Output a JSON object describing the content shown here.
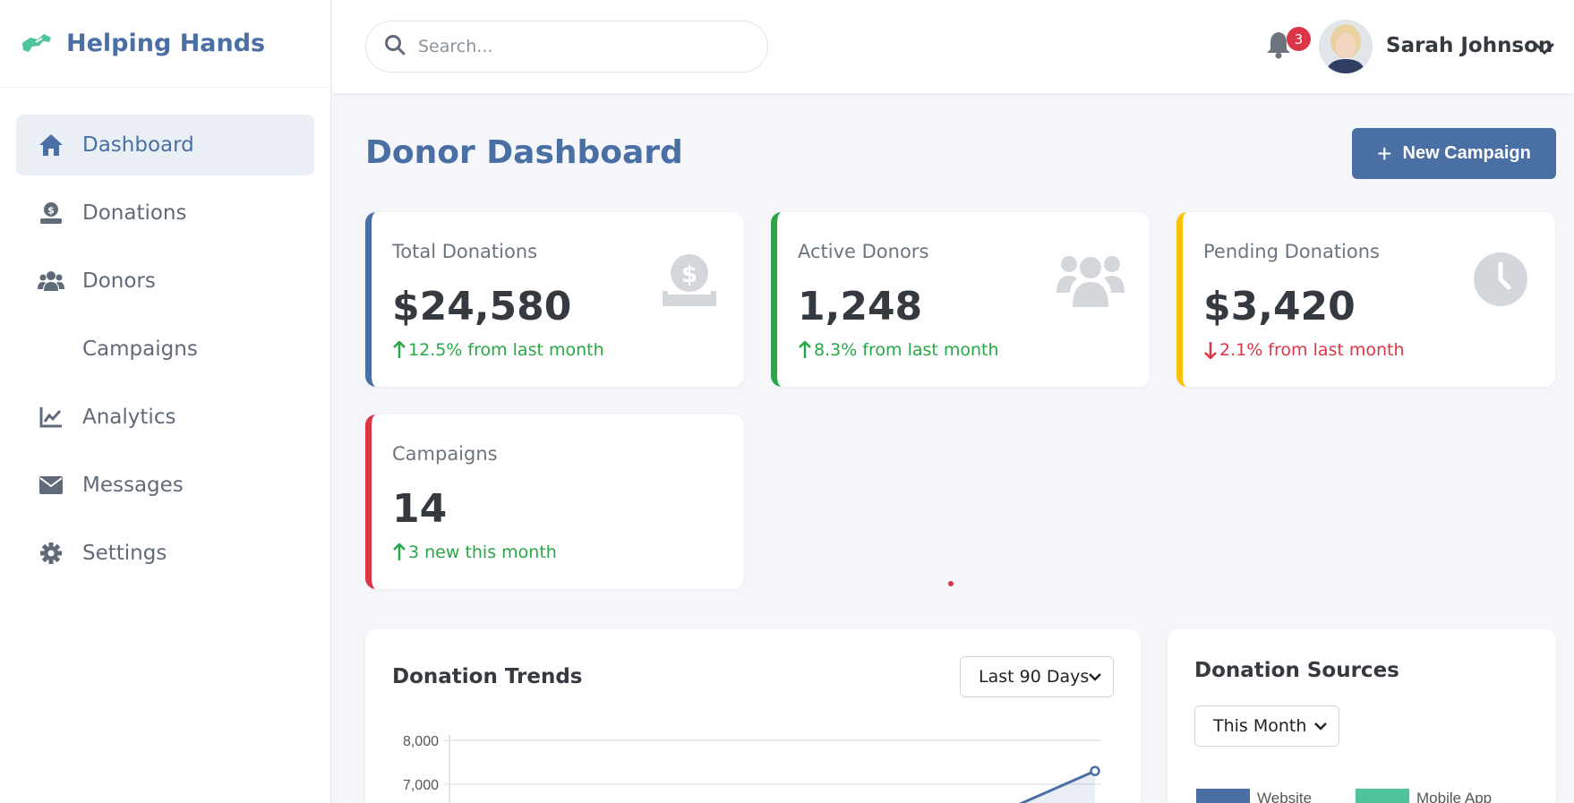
{
  "brand": {
    "name": "Helping Hands"
  },
  "sidebar": {
    "items": [
      {
        "label": "Dashboard",
        "icon": "home-icon",
        "active": true
      },
      {
        "label": "Donations",
        "icon": "donate-icon"
      },
      {
        "label": "Donors",
        "icon": "users-icon"
      },
      {
        "label": "Campaigns",
        "icon": ""
      },
      {
        "label": "Analytics",
        "icon": "chart-line-icon"
      },
      {
        "label": "Messages",
        "icon": "envelope-icon"
      },
      {
        "label": "Settings",
        "icon": "gear-icon"
      }
    ]
  },
  "header": {
    "search_placeholder": "Search...",
    "notification_count": "3",
    "user_name": "Sarah Johnson"
  },
  "main": {
    "title": "Donor Dashboard",
    "new_campaign_label": "New Campaign",
    "stats": [
      {
        "title": "Total Donations",
        "value": "$24,580",
        "change": "12.5% from last month",
        "direction": "up",
        "color": "#4a6fa5",
        "icon": "hand-holding-dollar-icon"
      },
      {
        "title": "Active Donors",
        "value": "1,248",
        "change": "8.3% from last month",
        "direction": "up",
        "color": "#28a745",
        "icon": "users-icon"
      },
      {
        "title": "Pending Donations",
        "value": "$3,420",
        "change": "2.1% from last month",
        "direction": "down",
        "color": "#ffc107",
        "icon": "clock-icon"
      },
      {
        "title": "Campaigns",
        "value": "14",
        "change": "3 new this month",
        "direction": "up",
        "color": "#dc3545",
        "icon": ""
      }
    ],
    "trends": {
      "title": "Donation Trends",
      "range": "Last 90 Days"
    },
    "sources": {
      "title": "Donation Sources",
      "range": "This Month"
    }
  },
  "chart_data": [
    {
      "type": "line",
      "title": "Donation Trends",
      "ylim": [
        7000,
        8000
      ],
      "y_ticks": [
        "8,000",
        "7,000"
      ],
      "series": [
        {
          "values": [
            7300
          ]
        }
      ],
      "colors": [
        "#4a6fa5"
      ]
    },
    {
      "type": "bar",
      "title": "Donation Sources",
      "legend": [
        "Website",
        "Mobile App"
      ],
      "colors": [
        "#4a6fa5",
        "#4fc39a"
      ]
    }
  ]
}
